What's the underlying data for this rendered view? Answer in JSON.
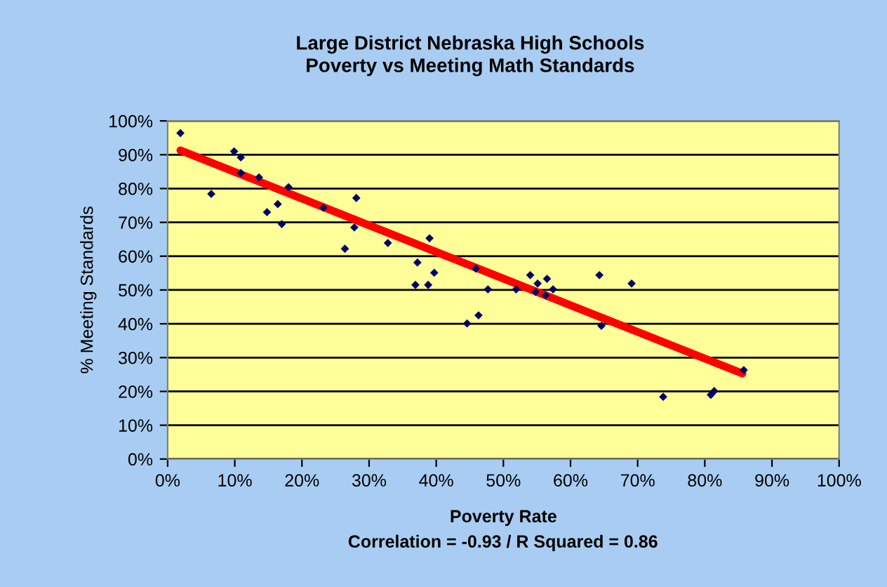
{
  "chart_data": {
    "type": "scatter",
    "title": "Large District Nebraska High Schools\nPoverty vs Meeting Math Standards",
    "xlabel": "Poverty Rate",
    "ylabel": "% Meeting Standards",
    "annotations": [
      "Correlation = -0.93 / R Squared = 0.86"
    ],
    "series": [
      {
        "color": "#000066",
        "marker": "diamond",
        "x": [
          1.9,
          6.5,
          9.9,
          10.9,
          10.9,
          13.6,
          14.8,
          16.4,
          17.0,
          18.0,
          23.2,
          26.4,
          28.1,
          27.8,
          32.8,
          37.2,
          39.0,
          36.9,
          38.8,
          39.7,
          44.6,
          46.3,
          45.9,
          47.7,
          51.9,
          54.0,
          55.1,
          54.8,
          56.5,
          56.3,
          57.4,
          64.3,
          69.1,
          64.6,
          73.8,
          80.9,
          81.4,
          85.8
        ],
        "values": [
          96.4,
          78.4,
          91.0,
          89.2,
          84.6,
          83.3,
          73.0,
          75.4,
          69.5,
          80.4,
          74.3,
          62.2,
          77.2,
          68.5,
          63.9,
          58.1,
          65.3,
          51.5,
          51.5,
          55.1,
          40.1,
          42.5,
          56.3,
          50.2,
          50.2,
          54.4,
          51.9,
          49.4,
          53.3,
          48.4,
          50.2,
          54.4,
          51.9,
          39.4,
          18.4,
          19.0,
          20.1,
          26.3
        ]
      },
      {
        "type": "line",
        "color": "#ff0000",
        "marker": "none",
        "x": [
          1.9,
          85.6
        ],
        "values": [
          91.3,
          25.3
        ]
      }
    ],
    "xlim": [
      0,
      100
    ],
    "ylim": [
      0,
      100
    ],
    "xticks": [
      {
        "value": 0,
        "label": "0%"
      },
      {
        "value": 10,
        "label": "10%"
      },
      {
        "value": 20,
        "label": "20%"
      },
      {
        "value": 30,
        "label": "30%"
      },
      {
        "value": 40,
        "label": "40%"
      },
      {
        "value": 50,
        "label": "50%"
      },
      {
        "value": 60,
        "label": "60%"
      },
      {
        "value": 70,
        "label": "70%"
      },
      {
        "value": 80,
        "label": "80%"
      },
      {
        "value": 90,
        "label": "90%"
      },
      {
        "value": 100,
        "label": "100%"
      }
    ],
    "yticks": [
      {
        "value": 0,
        "label": "0%"
      },
      {
        "value": 10,
        "label": "10%"
      },
      {
        "value": 20,
        "label": "20%"
      },
      {
        "value": 30,
        "label": "30%"
      },
      {
        "value": 40,
        "label": "40%"
      },
      {
        "value": 50,
        "label": "50%"
      },
      {
        "value": 60,
        "label": "60%"
      },
      {
        "value": 70,
        "label": "70%"
      },
      {
        "value": 80,
        "label": "80%"
      },
      {
        "value": 90,
        "label": "90%"
      },
      {
        "value": 100,
        "label": "100%"
      }
    ],
    "grid": "y"
  }
}
